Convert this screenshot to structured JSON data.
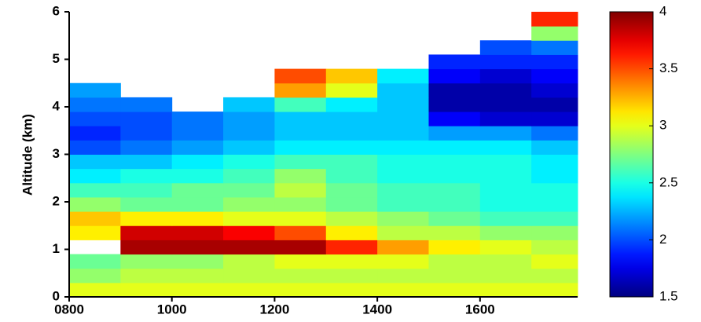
{
  "chart_data": {
    "type": "heatmap",
    "y_label": "Altitude (km)",
    "colormap": "jet",
    "x_edges": [
      800,
      900,
      1000,
      1100,
      1200,
      1300,
      1400,
      1500,
      1600,
      1700,
      1790
    ],
    "y_edges": [
      0,
      0.3,
      0.6,
      0.9,
      1.2,
      1.5,
      1.8,
      2.1,
      2.4,
      2.7,
      3.0,
      3.3,
      3.6,
      3.9,
      4.2,
      4.5,
      4.8,
      5.1,
      5.4,
      5.7,
      6.0
    ],
    "z": [
      [
        3.0,
        3.0,
        3.0,
        3.0,
        3.0,
        3.0,
        3.0,
        3.0,
        3.0,
        3.0
      ],
      [
        2.8,
        2.9,
        2.9,
        2.9,
        2.9,
        2.9,
        2.9,
        2.9,
        2.9,
        2.9
      ],
      [
        2.7,
        2.8,
        2.8,
        2.9,
        3.0,
        3.0,
        3.0,
        2.9,
        2.9,
        3.0
      ],
      [
        null,
        3.9,
        3.9,
        3.9,
        3.9,
        3.6,
        3.3,
        3.1,
        3.0,
        2.9
      ],
      [
        3.1,
        3.8,
        3.8,
        3.7,
        3.5,
        3.1,
        2.9,
        2.9,
        2.8,
        2.8
      ],
      [
        3.2,
        3.1,
        3.1,
        3.0,
        3.0,
        2.9,
        2.8,
        2.7,
        2.6,
        2.6
      ],
      [
        2.8,
        2.7,
        2.7,
        2.8,
        2.8,
        2.7,
        2.6,
        2.6,
        2.5,
        2.5
      ],
      [
        2.6,
        2.6,
        2.7,
        2.7,
        2.9,
        2.7,
        2.6,
        2.6,
        2.5,
        2.5
      ],
      [
        2.4,
        2.5,
        2.5,
        2.6,
        2.8,
        2.6,
        2.5,
        2.5,
        2.5,
        2.4
      ],
      [
        2.3,
        2.3,
        2.4,
        2.5,
        2.6,
        2.6,
        2.5,
        2.5,
        2.5,
        2.4
      ],
      [
        2.0,
        2.1,
        2.2,
        2.3,
        2.4,
        2.4,
        2.4,
        2.4,
        2.4,
        2.3
      ],
      [
        1.9,
        2.0,
        2.1,
        2.2,
        2.3,
        2.3,
        2.3,
        2.2,
        2.2,
        2.1
      ],
      [
        2.0,
        2.0,
        2.1,
        2.2,
        2.3,
        2.3,
        2.3,
        1.8,
        1.7,
        1.7
      ],
      [
        2.1,
        2.1,
        null,
        2.3,
        2.6,
        2.4,
        2.3,
        1.6,
        1.6,
        1.6
      ],
      [
        2.2,
        null,
        null,
        null,
        3.3,
        3.0,
        2.3,
        1.6,
        1.6,
        1.7
      ],
      [
        null,
        null,
        null,
        null,
        3.5,
        3.2,
        2.4,
        1.8,
        1.7,
        1.8
      ],
      [
        null,
        null,
        null,
        null,
        null,
        null,
        null,
        1.9,
        1.9,
        1.9
      ],
      [
        null,
        null,
        null,
        null,
        null,
        null,
        null,
        null,
        2.0,
        2.1
      ],
      [
        null,
        null,
        null,
        null,
        null,
        null,
        null,
        null,
        null,
        2.8
      ],
      [
        null,
        null,
        null,
        null,
        null,
        null,
        null,
        null,
        null,
        3.6
      ]
    ],
    "xlim": [
      800,
      1790
    ],
    "xticks": [
      {
        "value": 800,
        "label": "0800"
      },
      1000,
      1200,
      1400,
      1600
    ],
    "ylim": [
      0,
      6
    ],
    "yticks": [
      0,
      1,
      2,
      3,
      4,
      5,
      6
    ],
    "zlim": [
      1.5,
      4
    ],
    "zticks": [
      1.5,
      2,
      2.5,
      3,
      3.5,
      4
    ]
  }
}
